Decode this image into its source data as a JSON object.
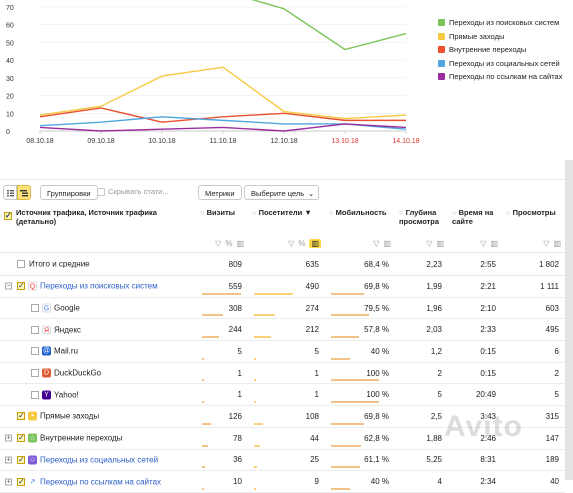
{
  "chart_data": {
    "type": "line",
    "x": [
      "08.10.18",
      "09.10.18",
      "10.10.18",
      "11.10.18",
      "12.10.18",
      "13.10.18",
      "14.10.18"
    ],
    "weekend_x": [
      "13.10.18",
      "14.10.18"
    ],
    "y_ticks": [
      0,
      10,
      20,
      30,
      40,
      50,
      60,
      70
    ],
    "ylim": [
      0,
      80
    ],
    "series": [
      {
        "name": "Переходы из поисковых систем",
        "color": "#7cc45a",
        "values": [
          null,
          null,
          null,
          79,
          69,
          46,
          55
        ]
      },
      {
        "name": "Прямые заходы",
        "color": "#f7c940",
        "values": [
          9,
          14,
          31,
          36,
          11,
          7,
          9
        ]
      },
      {
        "name": "Внутренние переходы",
        "color": "#e8502e",
        "values": [
          8,
          13,
          5,
          8,
          10,
          6,
          6
        ]
      },
      {
        "name": "Переходы из социальных сетей",
        "color": "#51a6e0",
        "values": [
          3,
          5,
          8,
          6,
          4,
          4,
          1
        ]
      },
      {
        "name": "Переходы по ссылкам на сайтах",
        "color": "#9b2c9e",
        "values": [
          2,
          0,
          1,
          2,
          0,
          4,
          2
        ]
      }
    ]
  },
  "toolbar": {
    "groupings_label": "Группировки",
    "hide_stats_label": "Скрывать стати...",
    "metrics_label": "Метрики",
    "goal_label": "Выберите цель"
  },
  "table": {
    "headers": {
      "source": "Источник трафика, Источник трафика (детально)",
      "visits": "Визиты",
      "visitors": "Посетители",
      "mobility": "Мобильность",
      "depth": "Глубина просмотра",
      "time": "Время на сайте",
      "views": "Просмотры"
    },
    "total": {
      "label": "Итого и средние",
      "visits": "809",
      "visitors": "635",
      "mobility": "68,4 %",
      "depth": "2,23",
      "time": "2:55",
      "views": "1 802"
    },
    "rows": [
      {
        "label": "Переходы из поисковых систем",
        "visits": "559",
        "visitors": "490",
        "mobility": "69,8 %",
        "depth": "1,99",
        "time": "2:21",
        "views": "1 111",
        "bar": 0.69
      },
      {
        "label": "Google",
        "visits": "308",
        "visitors": "274",
        "mobility": "79,5 %",
        "depth": "1,96",
        "time": "2:10",
        "views": "603",
        "bar": 0.38
      },
      {
        "label": "Яндекс",
        "visits": "244",
        "visitors": "212",
        "mobility": "57,8 %",
        "depth": "2,03",
        "time": "2:33",
        "views": "495",
        "bar": 0.3
      },
      {
        "label": "Mail.ru",
        "visits": "5",
        "visitors": "5",
        "mobility": "40 %",
        "depth": "1,2",
        "time": "0:15",
        "views": "6",
        "bar": 0.01
      },
      {
        "label": "DuckDuckGo",
        "visits": "1",
        "visitors": "1",
        "mobility": "100 %",
        "depth": "2",
        "time": "0:15",
        "views": "2",
        "bar": 0.01
      },
      {
        "label": "Yahoo!",
        "visits": "1",
        "visitors": "1",
        "mobility": "100 %",
        "depth": "5",
        "time": "20:49",
        "views": "5",
        "bar": 0.01
      },
      {
        "label": "Прямые заходы",
        "visits": "126",
        "visitors": "108",
        "mobility": "69,8 %",
        "depth": "2,5",
        "time": "3:43",
        "views": "315",
        "bar": 0.16
      },
      {
        "label": "Внутренние переходы",
        "visits": "78",
        "visitors": "44",
        "mobility": "62,8 %",
        "depth": "1,88",
        "time": "2:46",
        "views": "147",
        "bar": 0.1
      },
      {
        "label": "Переходы из социальных сетей",
        "visits": "36",
        "visitors": "25",
        "mobility": "61,1 %",
        "depth": "5,25",
        "time": "8:31",
        "views": "189",
        "bar": 0.05
      },
      {
        "label": "Переходы по ссылкам на сайтах",
        "visits": "10",
        "visitors": "9",
        "mobility": "40 %",
        "depth": "4",
        "time": "2:34",
        "views": "40",
        "bar": 0.02
      }
    ]
  }
}
